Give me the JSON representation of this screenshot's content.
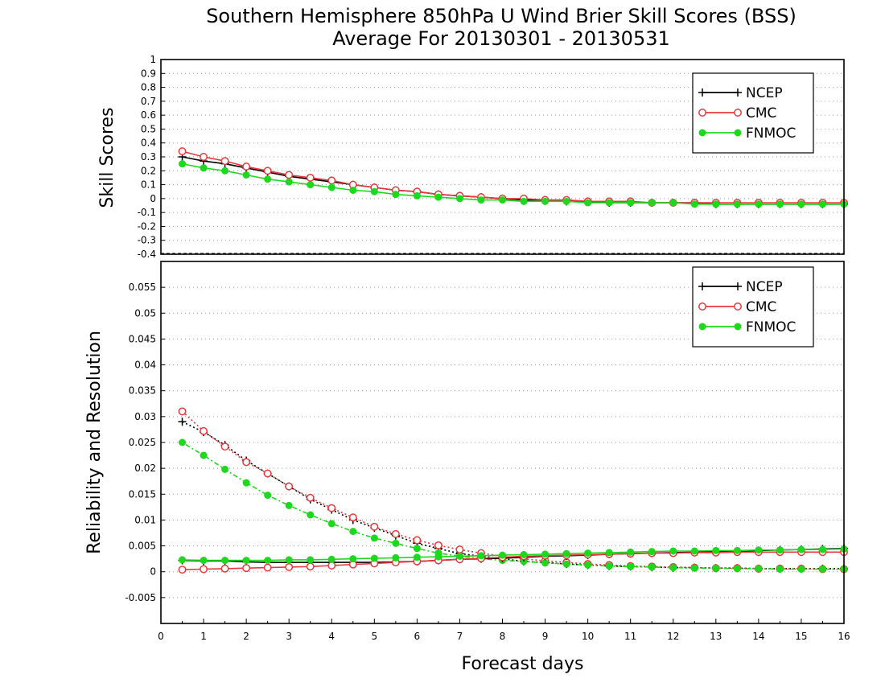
{
  "title_line1": "Southern Hemisphere 850hPa U Wind Brier Skill Scores (BSS)",
  "title_line2": "Average For 20130301 - 20130531",
  "colors": {
    "NCEP": "#000000",
    "CMC": "#e8383d",
    "FNMOC": "#1ed81e",
    "grid": "#999999"
  },
  "chart_data": [
    {
      "type": "line",
      "ylabel": "Skill Scores",
      "xlim": [
        0,
        16
      ],
      "ylim": [
        -0.4,
        1
      ],
      "yticks": [
        "1",
        "0.9",
        "0.8",
        "0.7",
        "0.6",
        "0.5",
        "0.4",
        "0.3",
        "0.2",
        "0.1",
        "0",
        "-0.1",
        "-0.2",
        "-0.3",
        "-0.4"
      ],
      "grid": true,
      "legend": "top-right",
      "x": [
        0.5,
        1,
        1.5,
        2,
        2.5,
        3,
        3.5,
        4,
        4.5,
        5,
        5.5,
        6,
        6.5,
        7,
        7.5,
        8,
        8.5,
        9,
        9.5,
        10,
        10.5,
        11,
        11.5,
        12,
        12.5,
        13,
        13.5,
        14,
        14.5,
        15,
        15.5,
        16
      ],
      "series": [
        {
          "name": "NCEP",
          "marker": "plus",
          "style": "solid",
          "values": [
            0.3,
            0.27,
            0.25,
            0.22,
            0.19,
            0.16,
            0.14,
            0.12,
            0.1,
            0.08,
            0.06,
            0.05,
            0.03,
            0.02,
            0.01,
            0.0,
            -0.01,
            -0.01,
            -0.02,
            -0.02,
            -0.03,
            -0.03,
            -0.03,
            -0.03,
            -0.03,
            -0.04,
            -0.04,
            -0.04,
            -0.04,
            -0.04,
            -0.04,
            -0.04
          ]
        },
        {
          "name": "CMC",
          "marker": "open-circle",
          "style": "solid",
          "values": [
            0.34,
            0.3,
            0.27,
            0.23,
            0.2,
            0.17,
            0.15,
            0.13,
            0.1,
            0.08,
            0.06,
            0.05,
            0.03,
            0.02,
            0.01,
            0.0,
            0.0,
            -0.01,
            -0.01,
            -0.02,
            -0.02,
            -0.02,
            -0.03,
            -0.03,
            -0.03,
            -0.03,
            -0.03,
            -0.03,
            -0.03,
            -0.03,
            -0.03,
            -0.03
          ]
        },
        {
          "name": "FNMOC",
          "marker": "filled-circle",
          "style": "solid",
          "values": [
            0.25,
            0.22,
            0.2,
            0.17,
            0.14,
            0.12,
            0.1,
            0.08,
            0.06,
            0.05,
            0.03,
            0.02,
            0.01,
            0.0,
            -0.01,
            -0.01,
            -0.02,
            -0.02,
            -0.02,
            -0.03,
            -0.03,
            -0.03,
            -0.03,
            -0.03,
            -0.04,
            -0.04,
            -0.04,
            -0.04,
            -0.04,
            -0.04,
            -0.04,
            -0.04
          ]
        }
      ]
    },
    {
      "type": "line",
      "xlabel": "Forecast days",
      "ylabel": "Reliability and Resolution",
      "xlim": [
        0,
        16
      ],
      "ylim": [
        -0.01,
        0.06
      ],
      "xticks": [
        "0",
        "1",
        "2",
        "3",
        "4",
        "5",
        "6",
        "7",
        "8",
        "9",
        "10",
        "11",
        "12",
        "13",
        "14",
        "15",
        "16"
      ],
      "yticks": [
        "0.055",
        "0.05",
        "0.045",
        "0.04",
        "0.035",
        "0.03",
        "0.025",
        "0.02",
        "0.015",
        "0.01",
        "0.005",
        "0",
        "-0.005"
      ],
      "grid": true,
      "legend": "top-right",
      "x": [
        0.5,
        1,
        1.5,
        2,
        2.5,
        3,
        3.5,
        4,
        4.5,
        5,
        5.5,
        6,
        6.5,
        7,
        7.5,
        8,
        8.5,
        9,
        9.5,
        10,
        10.5,
        11,
        11.5,
        12,
        12.5,
        13,
        13.5,
        14,
        14.5,
        15,
        15.5,
        16
      ],
      "series": [
        {
          "name": "NCEP",
          "kind": "resolution",
          "marker": "plus",
          "style": "dotted",
          "values": [
            0.029,
            0.027,
            0.0245,
            0.0215,
            0.019,
            0.0165,
            0.014,
            0.012,
            0.01,
            0.0085,
            0.007,
            0.0055,
            0.0045,
            0.0035,
            0.003,
            0.0025,
            0.002,
            0.0018,
            0.0015,
            0.0013,
            0.0011,
            0.001,
            0.0009,
            0.0008,
            0.0008,
            0.0007,
            0.0007,
            0.0006,
            0.0006,
            0.0006,
            0.0006,
            0.0006
          ]
        },
        {
          "name": "CMC",
          "kind": "resolution",
          "marker": "open-circle",
          "style": "dotted",
          "values": [
            0.031,
            0.0272,
            0.0242,
            0.0212,
            0.019,
            0.0165,
            0.0143,
            0.0123,
            0.0105,
            0.0087,
            0.0073,
            0.0061,
            0.0051,
            0.0043,
            0.0036,
            0.003,
            0.0025,
            0.0021,
            0.0018,
            0.0015,
            0.0013,
            0.0011,
            0.001,
            0.0009,
            0.0008,
            0.0007,
            0.0007,
            0.0006,
            0.0006,
            0.0006,
            0.0005,
            0.0005
          ]
        },
        {
          "name": "FNMOC",
          "kind": "resolution",
          "marker": "filled-circle",
          "style": "dotted",
          "values": [
            0.025,
            0.0225,
            0.0198,
            0.0172,
            0.0148,
            0.0128,
            0.011,
            0.0093,
            0.0078,
            0.0065,
            0.0055,
            0.0045,
            0.0036,
            0.003,
            0.0025,
            0.0022,
            0.002,
            0.0017,
            0.0015,
            0.0013,
            0.0011,
            0.001,
            0.0009,
            0.0008,
            0.0007,
            0.0007,
            0.0006,
            0.0006,
            0.0005,
            0.0005,
            0.0005,
            0.0005
          ]
        },
        {
          "name": "NCEP",
          "kind": "reliability",
          "marker": "plus",
          "style": "solid",
          "values": [
            0.0022,
            0.0021,
            0.0021,
            0.0019,
            0.0018,
            0.0018,
            0.0018,
            0.0018,
            0.0018,
            0.0018,
            0.0019,
            0.002,
            0.0022,
            0.0024,
            0.0025,
            0.0026,
            0.0028,
            0.003,
            0.0031,
            0.0032,
            0.0034,
            0.0035,
            0.0036,
            0.0037,
            0.0038,
            0.0039,
            0.004,
            0.0041,
            0.0042,
            0.0043,
            0.0044,
            0.0045
          ]
        },
        {
          "name": "CMC",
          "kind": "reliability",
          "marker": "open-circle",
          "style": "solid",
          "values": [
            0.0004,
            0.0005,
            0.0006,
            0.0007,
            0.0008,
            0.0009,
            0.001,
            0.0012,
            0.0014,
            0.0016,
            0.0018,
            0.002,
            0.0022,
            0.0024,
            0.0026,
            0.0028,
            0.003,
            0.0031,
            0.0032,
            0.0033,
            0.0034,
            0.0035,
            0.0036,
            0.0036,
            0.0037,
            0.0037,
            0.0038,
            0.0038,
            0.0038,
            0.0038,
            0.0038,
            0.0038
          ]
        },
        {
          "name": "FNMOC",
          "kind": "reliability",
          "marker": "filled-circle",
          "style": "solid",
          "values": [
            0.0023,
            0.0022,
            0.0022,
            0.0022,
            0.0022,
            0.0023,
            0.0023,
            0.0024,
            0.0025,
            0.0026,
            0.0027,
            0.0028,
            0.0029,
            0.003,
            0.0031,
            0.0032,
            0.0033,
            0.0034,
            0.0035,
            0.0036,
            0.0037,
            0.0038,
            0.0039,
            0.004,
            0.004,
            0.0041,
            0.0041,
            0.0042,
            0.0042,
            0.0043,
            0.0043,
            0.0044
          ]
        }
      ]
    }
  ]
}
